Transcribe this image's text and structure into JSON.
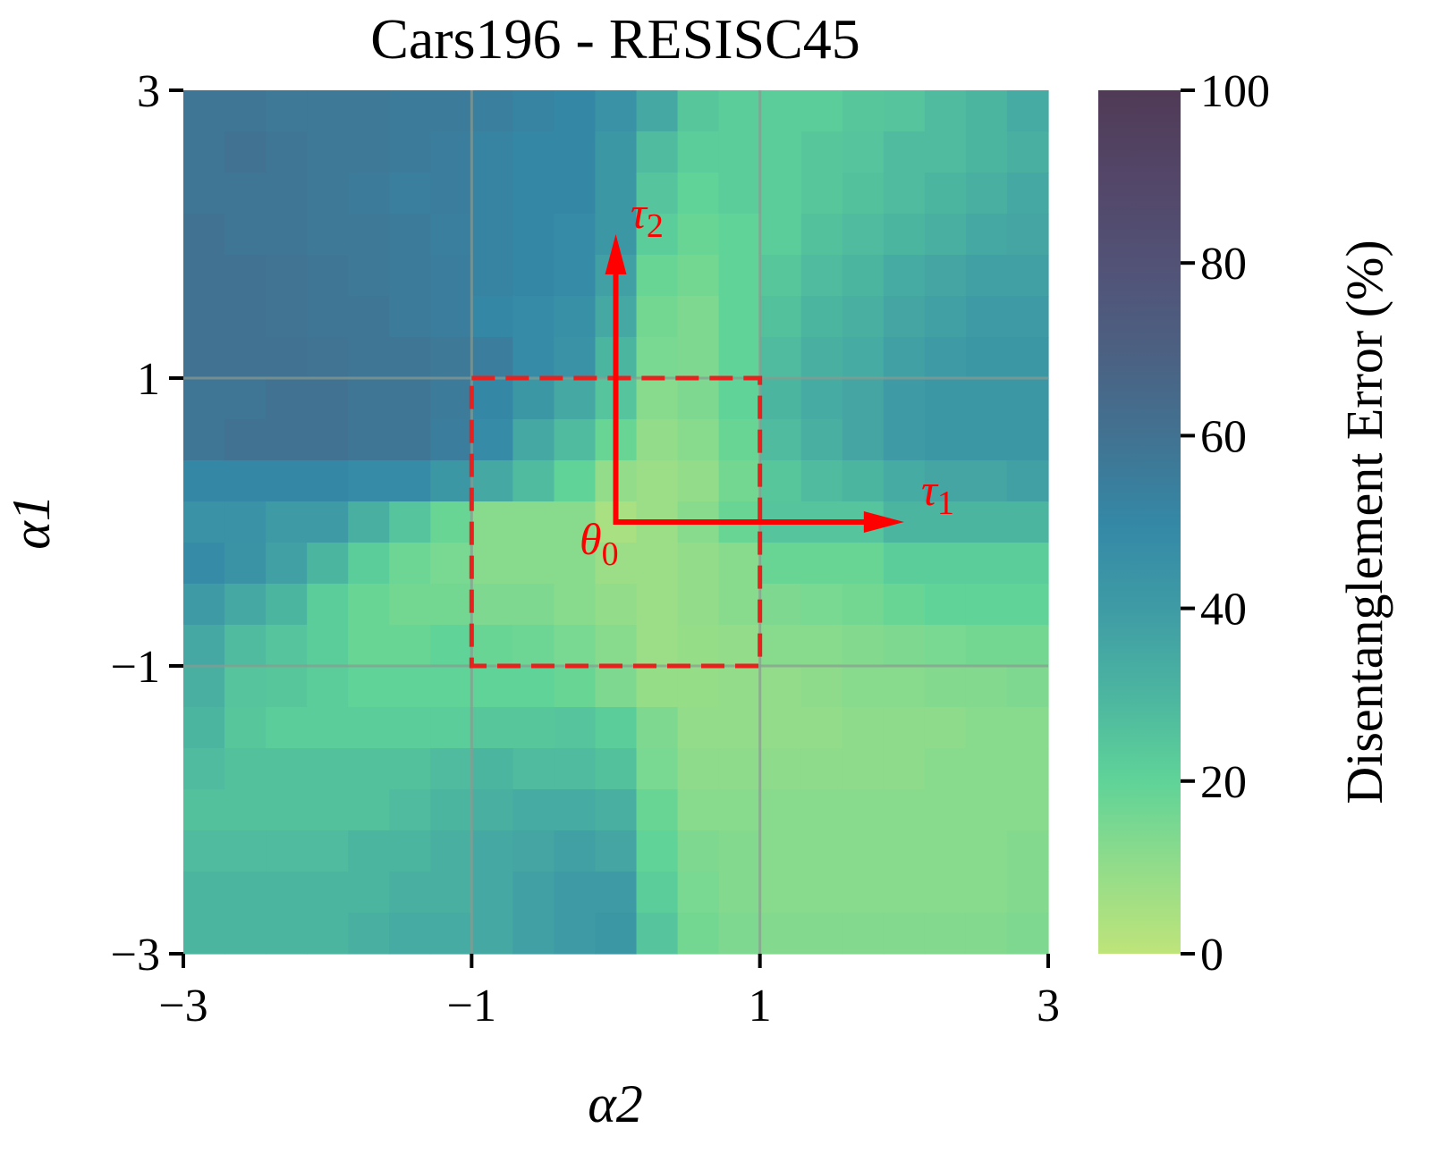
{
  "chart_data": {
    "type": "heatmap",
    "title": "Cars196 - RESISC45",
    "xlabel": "α2",
    "ylabel": "α1",
    "colorbar_label": "Disentanglement Error (%)",
    "colorbar_ticks": [
      "0",
      "20",
      "40",
      "60",
      "80",
      "100"
    ],
    "colorbar_range": [
      0,
      100
    ],
    "x_range": [
      -3,
      3
    ],
    "y_range": [
      -3,
      3
    ],
    "x_ticks": [
      "−3",
      "−1",
      "1",
      "3"
    ],
    "y_ticks": [
      "3",
      "1",
      "−1",
      "−3"
    ],
    "x_tick_values": [
      -3,
      -1,
      1,
      3
    ],
    "y_tick_values": [
      3,
      1,
      -1,
      -3
    ],
    "grid": true,
    "annotations": {
      "tau1": "τ",
      "tau1_sub": "1",
      "tau2": "τ",
      "tau2_sub": "2",
      "theta0": "θ",
      "theta0_sub": "0"
    },
    "box_range": [
      -1,
      1
    ],
    "annotation_color": "#ff0000",
    "rows_top_to_bottom": [
      [
        58,
        58,
        57,
        57,
        57,
        56,
        56,
        54,
        52,
        50,
        45,
        35,
        24,
        22,
        22,
        22,
        24,
        25,
        28,
        30,
        34
      ],
      [
        58,
        60,
        58,
        57,
        57,
        56,
        55,
        52,
        50,
        50,
        42,
        28,
        22,
        22,
        22,
        24,
        25,
        28,
        28,
        30,
        32
      ],
      [
        58,
        58,
        58,
        57,
        56,
        54,
        55,
        52,
        50,
        50,
        42,
        25,
        20,
        22,
        22,
        24,
        26,
        28,
        30,
        32,
        35
      ],
      [
        60,
        58,
        58,
        57,
        57,
        56,
        54,
        52,
        50,
        48,
        42,
        22,
        18,
        20,
        22,
        26,
        28,
        30,
        32,
        35,
        36
      ],
      [
        60,
        60,
        59,
        58,
        57,
        56,
        55,
        52,
        50,
        48,
        38,
        18,
        16,
        20,
        24,
        28,
        30,
        34,
        36,
        38,
        38
      ],
      [
        60,
        60,
        59,
        58,
        58,
        56,
        55,
        50,
        48,
        46,
        35,
        16,
        14,
        20,
        26,
        30,
        32,
        36,
        38,
        40,
        40
      ],
      [
        60,
        60,
        60,
        59,
        58,
        58,
        57,
        55,
        48,
        45,
        30,
        15,
        14,
        20,
        28,
        32,
        34,
        38,
        40,
        42,
        42
      ],
      [
        58,
        58,
        60,
        60,
        58,
        58,
        56,
        50,
        42,
        35,
        25,
        12,
        14,
        20,
        30,
        34,
        36,
        40,
        42,
        42,
        42
      ],
      [
        58,
        60,
        60,
        60,
        58,
        58,
        55,
        48,
        35,
        28,
        18,
        10,
        12,
        18,
        28,
        32,
        36,
        40,
        42,
        42,
        42
      ],
      [
        50,
        50,
        50,
        50,
        48,
        48,
        42,
        35,
        28,
        20,
        10,
        8,
        10,
        16,
        24,
        28,
        30,
        34,
        36,
        36,
        38
      ],
      [
        45,
        45,
        40,
        40,
        32,
        25,
        18,
        12,
        12,
        12,
        5,
        8,
        12,
        18,
        25,
        25,
        25,
        30,
        30,
        30,
        30
      ],
      [
        48,
        44,
        38,
        30,
        22,
        17,
        15,
        12,
        12,
        12,
        8,
        8,
        10,
        12,
        18,
        18,
        18,
        22,
        22,
        22,
        22
      ],
      [
        40,
        35,
        30,
        22,
        18,
        16,
        16,
        14,
        14,
        12,
        10,
        8,
        10,
        12,
        14,
        15,
        16,
        18,
        20,
        20,
        20
      ],
      [
        35,
        28,
        25,
        22,
        18,
        18,
        20,
        18,
        17,
        15,
        12,
        8,
        9,
        10,
        12,
        12,
        13,
        14,
        15,
        16,
        16
      ],
      [
        32,
        25,
        24,
        22,
        20,
        20,
        20,
        20,
        20,
        18,
        14,
        9,
        9,
        10,
        10,
        11,
        12,
        12,
        13,
        13,
        14
      ],
      [
        30,
        24,
        22,
        22,
        22,
        22,
        22,
        24,
        24,
        25,
        22,
        14,
        10,
        10,
        10,
        10,
        11,
        11,
        11,
        12,
        12
      ],
      [
        28,
        26,
        26,
        26,
        26,
        26,
        28,
        30,
        28,
        28,
        26,
        15,
        11,
        11,
        11,
        11,
        11,
        11,
        12,
        12,
        12
      ],
      [
        26,
        26,
        26,
        26,
        26,
        28,
        30,
        32,
        34,
        34,
        32,
        18,
        12,
        12,
        12,
        12,
        12,
        12,
        12,
        12,
        12
      ],
      [
        28,
        28,
        28,
        28,
        30,
        30,
        32,
        35,
        36,
        38,
        36,
        20,
        14,
        13,
        12,
        12,
        12,
        12,
        12,
        12,
        13
      ],
      [
        30,
        30,
        30,
        30,
        30,
        32,
        32,
        35,
        38,
        40,
        40,
        22,
        15,
        13,
        12,
        12,
        12,
        12,
        12,
        12,
        13
      ],
      [
        30,
        30,
        30,
        30,
        32,
        34,
        34,
        35,
        38,
        40,
        42,
        25,
        16,
        14,
        13,
        13,
        13,
        13,
        13,
        13,
        14
      ]
    ]
  }
}
